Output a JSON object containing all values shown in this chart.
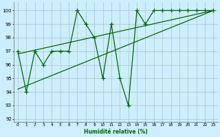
{
  "xlabel": "Humidité relative (%)",
  "xlim": [
    -0.5,
    23.5
  ],
  "ylim": [
    91.8,
    100.6
  ],
  "yticks": [
    92,
    93,
    94,
    95,
    96,
    97,
    98,
    99,
    100
  ],
  "xticks": [
    0,
    1,
    2,
    3,
    4,
    5,
    6,
    7,
    8,
    9,
    10,
    11,
    12,
    13,
    14,
    15,
    16,
    17,
    18,
    19,
    20,
    21,
    22,
    23
  ],
  "bg_color": "#cceeff",
  "grid_color": "#aacccc",
  "line_color": "#006600",
  "line_width": 0.9,
  "marker": "+",
  "markersize": 4,
  "data_x": [
    0,
    1,
    2,
    3,
    4,
    5,
    6,
    7,
    8,
    9,
    10,
    11,
    12,
    13,
    14,
    15,
    16,
    17,
    18,
    19,
    20,
    21,
    22,
    23
  ],
  "data_y": [
    97,
    94,
    97,
    96,
    97,
    97,
    97,
    100,
    99,
    98,
    95,
    99,
    95,
    93,
    100,
    99,
    100,
    100,
    100,
    100,
    100,
    100,
    100,
    100
  ],
  "trend1_x": [
    0,
    23
  ],
  "trend1_y": [
    94.2,
    100.0
  ],
  "trend2_x": [
    0,
    23
  ],
  "trend2_y": [
    96.8,
    100.0
  ]
}
